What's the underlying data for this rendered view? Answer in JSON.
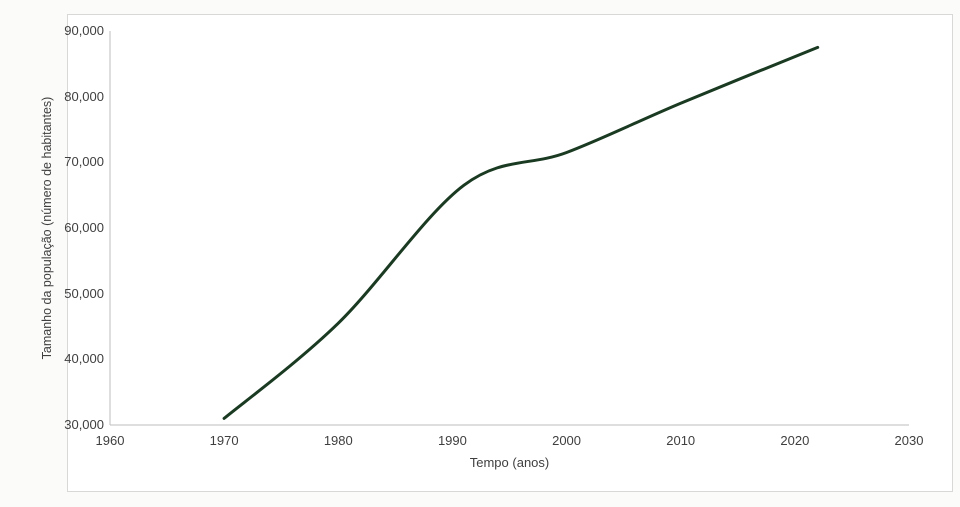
{
  "page": {
    "background_color": "#fbfbfa",
    "panel_background_color": "#ffffff",
    "panel_border_color": "#d8d8d6"
  },
  "chart_data": {
    "type": "line",
    "title": "",
    "xlabel": "Tempo (anos)",
    "ylabel": "Tamanho da população (número de habitantes)",
    "x": [
      1970,
      1980,
      1991,
      2000,
      2010,
      2022
    ],
    "y": [
      31000,
      45500,
      66500,
      71500,
      79000,
      87500
    ],
    "xlim": [
      1960,
      2030
    ],
    "ylim": [
      30000,
      90000
    ],
    "x_ticks": [
      1960,
      1970,
      1980,
      1990,
      2000,
      2010,
      2020,
      2030
    ],
    "x_tick_labels": [
      "1960",
      "1970",
      "1980",
      "1990",
      "2000",
      "2010",
      "2020",
      "2030"
    ],
    "y_ticks": [
      30000,
      40000,
      50000,
      60000,
      70000,
      80000,
      90000
    ],
    "y_tick_labels": [
      "30,000",
      "40,000",
      "50,000",
      "60,000",
      "70,000",
      "80,000",
      "90,000"
    ],
    "grid": false,
    "legend": null,
    "line_color": "#1a3a22",
    "line_width": 3,
    "axis_color": "#bcbcbc",
    "text_color": "#3f3f3f"
  }
}
